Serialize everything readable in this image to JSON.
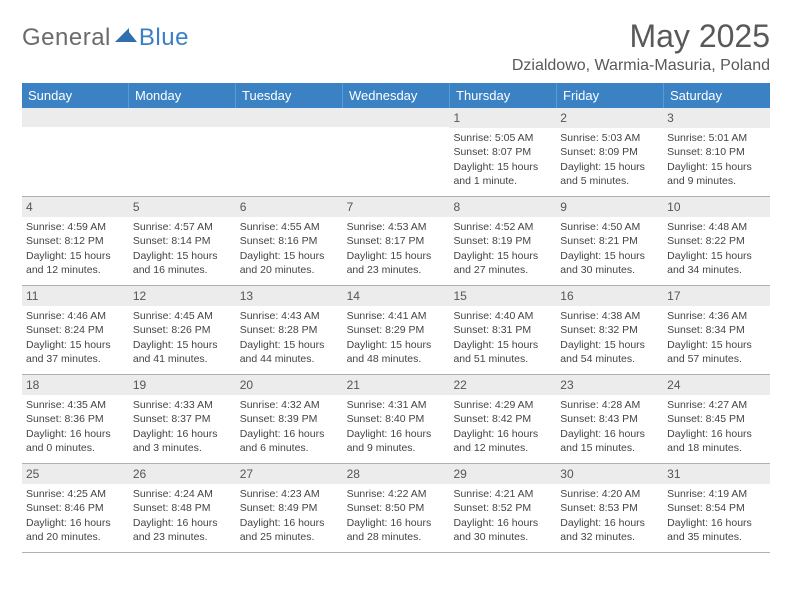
{
  "logo": {
    "word1": "General",
    "word2": "Blue"
  },
  "title": "May 2025",
  "location": "Dzialdowo, Warmia-Masuria, Poland",
  "colors": {
    "header_bg": "#3b82c4",
    "header_text": "#ffffff",
    "daynum_bg": "#ececec",
    "text": "#444444",
    "title_color": "#595959"
  },
  "typography": {
    "title_fontsize": 32,
    "location_fontsize": 16,
    "weekday_fontsize": 13,
    "daynum_fontsize": 12,
    "body_fontsize": 10.5
  },
  "weekdays": [
    "Sunday",
    "Monday",
    "Tuesday",
    "Wednesday",
    "Thursday",
    "Friday",
    "Saturday"
  ],
  "weeks": [
    [
      {
        "n": "",
        "sr": "",
        "ss": "",
        "d1": "",
        "d2": ""
      },
      {
        "n": "",
        "sr": "",
        "ss": "",
        "d1": "",
        "d2": ""
      },
      {
        "n": "",
        "sr": "",
        "ss": "",
        "d1": "",
        "d2": ""
      },
      {
        "n": "",
        "sr": "",
        "ss": "",
        "d1": "",
        "d2": ""
      },
      {
        "n": "1",
        "sr": "Sunrise: 5:05 AM",
        "ss": "Sunset: 8:07 PM",
        "d1": "Daylight: 15 hours",
        "d2": "and 1 minute."
      },
      {
        "n": "2",
        "sr": "Sunrise: 5:03 AM",
        "ss": "Sunset: 8:09 PM",
        "d1": "Daylight: 15 hours",
        "d2": "and 5 minutes."
      },
      {
        "n": "3",
        "sr": "Sunrise: 5:01 AM",
        "ss": "Sunset: 8:10 PM",
        "d1": "Daylight: 15 hours",
        "d2": "and 9 minutes."
      }
    ],
    [
      {
        "n": "4",
        "sr": "Sunrise: 4:59 AM",
        "ss": "Sunset: 8:12 PM",
        "d1": "Daylight: 15 hours",
        "d2": "and 12 minutes."
      },
      {
        "n": "5",
        "sr": "Sunrise: 4:57 AM",
        "ss": "Sunset: 8:14 PM",
        "d1": "Daylight: 15 hours",
        "d2": "and 16 minutes."
      },
      {
        "n": "6",
        "sr": "Sunrise: 4:55 AM",
        "ss": "Sunset: 8:16 PM",
        "d1": "Daylight: 15 hours",
        "d2": "and 20 minutes."
      },
      {
        "n": "7",
        "sr": "Sunrise: 4:53 AM",
        "ss": "Sunset: 8:17 PM",
        "d1": "Daylight: 15 hours",
        "d2": "and 23 minutes."
      },
      {
        "n": "8",
        "sr": "Sunrise: 4:52 AM",
        "ss": "Sunset: 8:19 PM",
        "d1": "Daylight: 15 hours",
        "d2": "and 27 minutes."
      },
      {
        "n": "9",
        "sr": "Sunrise: 4:50 AM",
        "ss": "Sunset: 8:21 PM",
        "d1": "Daylight: 15 hours",
        "d2": "and 30 minutes."
      },
      {
        "n": "10",
        "sr": "Sunrise: 4:48 AM",
        "ss": "Sunset: 8:22 PM",
        "d1": "Daylight: 15 hours",
        "d2": "and 34 minutes."
      }
    ],
    [
      {
        "n": "11",
        "sr": "Sunrise: 4:46 AM",
        "ss": "Sunset: 8:24 PM",
        "d1": "Daylight: 15 hours",
        "d2": "and 37 minutes."
      },
      {
        "n": "12",
        "sr": "Sunrise: 4:45 AM",
        "ss": "Sunset: 8:26 PM",
        "d1": "Daylight: 15 hours",
        "d2": "and 41 minutes."
      },
      {
        "n": "13",
        "sr": "Sunrise: 4:43 AM",
        "ss": "Sunset: 8:28 PM",
        "d1": "Daylight: 15 hours",
        "d2": "and 44 minutes."
      },
      {
        "n": "14",
        "sr": "Sunrise: 4:41 AM",
        "ss": "Sunset: 8:29 PM",
        "d1": "Daylight: 15 hours",
        "d2": "and 48 minutes."
      },
      {
        "n": "15",
        "sr": "Sunrise: 4:40 AM",
        "ss": "Sunset: 8:31 PM",
        "d1": "Daylight: 15 hours",
        "d2": "and 51 minutes."
      },
      {
        "n": "16",
        "sr": "Sunrise: 4:38 AM",
        "ss": "Sunset: 8:32 PM",
        "d1": "Daylight: 15 hours",
        "d2": "and 54 minutes."
      },
      {
        "n": "17",
        "sr": "Sunrise: 4:36 AM",
        "ss": "Sunset: 8:34 PM",
        "d1": "Daylight: 15 hours",
        "d2": "and 57 minutes."
      }
    ],
    [
      {
        "n": "18",
        "sr": "Sunrise: 4:35 AM",
        "ss": "Sunset: 8:36 PM",
        "d1": "Daylight: 16 hours",
        "d2": "and 0 minutes."
      },
      {
        "n": "19",
        "sr": "Sunrise: 4:33 AM",
        "ss": "Sunset: 8:37 PM",
        "d1": "Daylight: 16 hours",
        "d2": "and 3 minutes."
      },
      {
        "n": "20",
        "sr": "Sunrise: 4:32 AM",
        "ss": "Sunset: 8:39 PM",
        "d1": "Daylight: 16 hours",
        "d2": "and 6 minutes."
      },
      {
        "n": "21",
        "sr": "Sunrise: 4:31 AM",
        "ss": "Sunset: 8:40 PM",
        "d1": "Daylight: 16 hours",
        "d2": "and 9 minutes."
      },
      {
        "n": "22",
        "sr": "Sunrise: 4:29 AM",
        "ss": "Sunset: 8:42 PM",
        "d1": "Daylight: 16 hours",
        "d2": "and 12 minutes."
      },
      {
        "n": "23",
        "sr": "Sunrise: 4:28 AM",
        "ss": "Sunset: 8:43 PM",
        "d1": "Daylight: 16 hours",
        "d2": "and 15 minutes."
      },
      {
        "n": "24",
        "sr": "Sunrise: 4:27 AM",
        "ss": "Sunset: 8:45 PM",
        "d1": "Daylight: 16 hours",
        "d2": "and 18 minutes."
      }
    ],
    [
      {
        "n": "25",
        "sr": "Sunrise: 4:25 AM",
        "ss": "Sunset: 8:46 PM",
        "d1": "Daylight: 16 hours",
        "d2": "and 20 minutes."
      },
      {
        "n": "26",
        "sr": "Sunrise: 4:24 AM",
        "ss": "Sunset: 8:48 PM",
        "d1": "Daylight: 16 hours",
        "d2": "and 23 minutes."
      },
      {
        "n": "27",
        "sr": "Sunrise: 4:23 AM",
        "ss": "Sunset: 8:49 PM",
        "d1": "Daylight: 16 hours",
        "d2": "and 25 minutes."
      },
      {
        "n": "28",
        "sr": "Sunrise: 4:22 AM",
        "ss": "Sunset: 8:50 PM",
        "d1": "Daylight: 16 hours",
        "d2": "and 28 minutes."
      },
      {
        "n": "29",
        "sr": "Sunrise: 4:21 AM",
        "ss": "Sunset: 8:52 PM",
        "d1": "Daylight: 16 hours",
        "d2": "and 30 minutes."
      },
      {
        "n": "30",
        "sr": "Sunrise: 4:20 AM",
        "ss": "Sunset: 8:53 PM",
        "d1": "Daylight: 16 hours",
        "d2": "and 32 minutes."
      },
      {
        "n": "31",
        "sr": "Sunrise: 4:19 AM",
        "ss": "Sunset: 8:54 PM",
        "d1": "Daylight: 16 hours",
        "d2": "and 35 minutes."
      }
    ]
  ]
}
